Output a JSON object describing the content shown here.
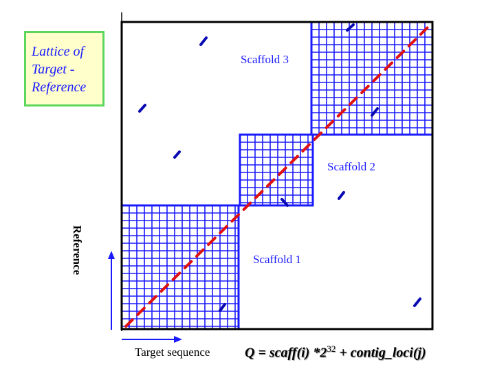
{
  "lattice_box": {
    "lines": [
      "Lattice of",
      "Target -",
      "Reference"
    ]
  },
  "scaffolds": [
    {
      "label": "Scaffold 1"
    },
    {
      "label": "Scaffold 2"
    },
    {
      "label": "Scaffold 3"
    }
  ],
  "axes": {
    "y_label": "Reference",
    "x_label": "Target sequence"
  },
  "formula": {
    "text_a": "Q = scaff(i) *2",
    "exponent": "32",
    "text_b": " + contig_loci(j)"
  },
  "colors": {
    "grid": "#1a1aff",
    "diagonal": "#e01010",
    "off_diagonal": "#0a0ab4",
    "frame": "#000000",
    "box_fill": "#ffffcc",
    "box_border": "#5cd65c",
    "axis_arrow": "#1a1aff"
  }
}
